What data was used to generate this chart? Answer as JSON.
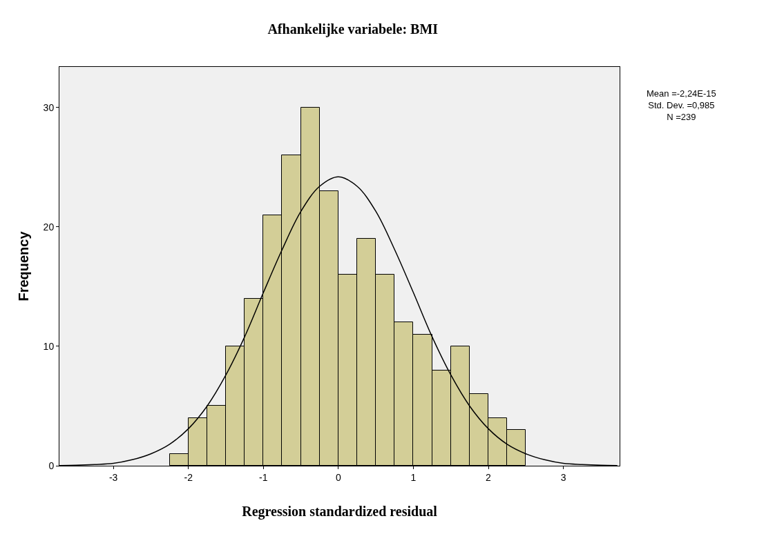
{
  "chart_data": {
    "type": "histogram",
    "title": "Afhankelijke variabele: BMI",
    "xlabel": "Regression standardized residual",
    "ylabel": "Frequency",
    "bins": [
      -2.25,
      -2.0,
      -1.75,
      -1.5,
      -1.25,
      -1.0,
      -0.75,
      -0.5,
      -0.25,
      0.0,
      0.25,
      0.5,
      0.75,
      1.0,
      1.25,
      1.5,
      1.75,
      2.0,
      2.25,
      2.5
    ],
    "values": [
      1,
      4,
      5,
      10,
      14,
      21,
      26,
      30,
      23,
      16,
      19,
      16,
      12,
      11,
      8,
      10,
      6,
      4,
      3
    ],
    "color": "#d3ce97",
    "series": [
      {
        "type": "line",
        "color": "#000000",
        "x": [
          -3.72,
          -3.5,
          -3.25,
          -3.0,
          -2.75,
          -2.5,
          -2.25,
          -2.0,
          -1.75,
          -1.5,
          -1.25,
          -1.0,
          -0.75,
          -0.5,
          -0.25,
          0.0,
          0.25,
          0.5,
          0.75,
          1.0,
          1.25,
          1.5,
          1.75,
          2.0,
          2.25,
          2.5,
          2.75,
          3.0,
          3.25,
          3.5,
          3.72
        ],
        "values": [
          0.02,
          0.04,
          0.1,
          0.2,
          0.5,
          1.0,
          1.8,
          3.1,
          5.0,
          7.6,
          10.8,
          14.5,
          18.1,
          21.3,
          23.4,
          24.2,
          23.4,
          21.3,
          18.1,
          14.5,
          10.8,
          7.6,
          5.0,
          3.1,
          1.8,
          1.0,
          0.5,
          0.2,
          0.1,
          0.04,
          0.02
        ]
      }
    ],
    "xlim": [
      -3.72,
      3.75
    ],
    "ylim": [
      0,
      33.4
    ],
    "xticks": [
      -3,
      -2,
      -1,
      0,
      1,
      2,
      3
    ],
    "yticks": [
      0,
      10,
      20,
      30
    ],
    "annotations": [
      "Mean =-2,24E-15\nStd. Dev. =0,985\nN =239"
    ],
    "grid": false
  }
}
